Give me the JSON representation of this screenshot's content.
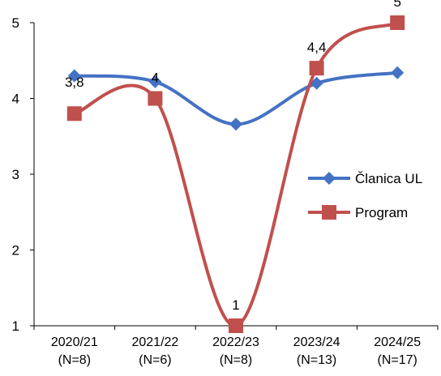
{
  "chart_data": {
    "type": "line",
    "categories": [
      "2020/21\n(N=8)",
      "2021/22\n(N=6)",
      "2022/23\n(N=8)",
      "2023/24\n(N=13)",
      "2024/25\n(N=17)"
    ],
    "yticks": [
      "1",
      "2",
      "3",
      "4",
      "5"
    ],
    "ylim": [
      1,
      5
    ],
    "smooth": true,
    "grid": false,
    "legend_position": "right",
    "series": [
      {
        "name": "Članica UL",
        "color": "#4472C4",
        "marker": "diamond",
        "values": [
          4.3,
          4.22,
          3.66,
          4.2,
          4.34
        ],
        "data_labels": [
          "",
          "",
          "",
          "",
          ""
        ]
      },
      {
        "name": "Program",
        "color": "#C0504D",
        "marker": "square",
        "values": [
          3.8,
          4.0,
          1.0,
          4.4,
          5.0
        ],
        "data_labels": [
          "3,8",
          "4",
          "1",
          "4,4",
          "5"
        ]
      }
    ]
  }
}
